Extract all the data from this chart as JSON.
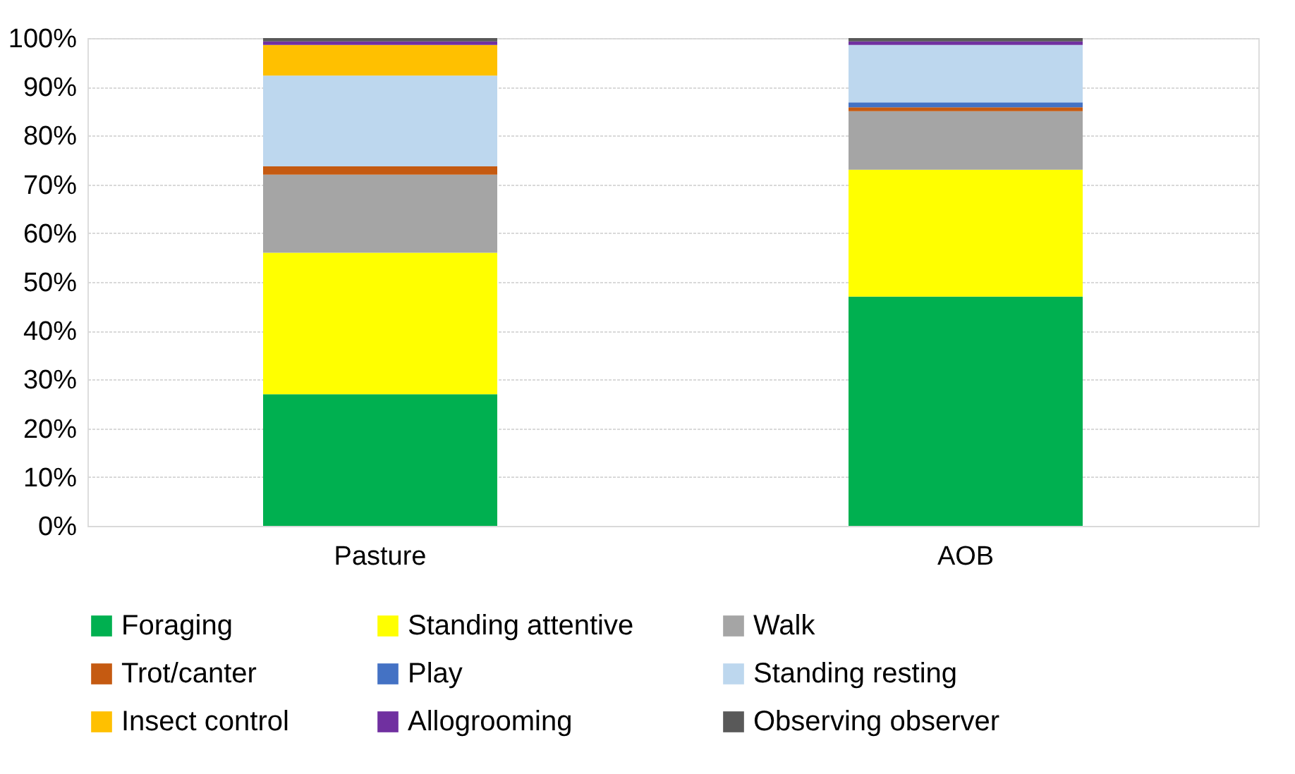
{
  "chart_data": {
    "type": "bar",
    "stacked": true,
    "categories": [
      "Pasture",
      "AOB"
    ],
    "series": [
      {
        "name": "Foraging",
        "color": "#00b050",
        "values": [
          27,
          47
        ]
      },
      {
        "name": "Standing attentive",
        "color": "#ffff00",
        "values": [
          29,
          26
        ]
      },
      {
        "name": "Walk",
        "color": "#a5a5a5",
        "values": [
          16,
          12
        ]
      },
      {
        "name": "Trot/canter",
        "color": "#c55a11",
        "values": [
          1.7,
          0.8
        ]
      },
      {
        "name": "Play",
        "color": "#4472c4",
        "values": [
          0,
          1
        ]
      },
      {
        "name": "Standing resting",
        "color": "#bdd7ee",
        "values": [
          18.6,
          11.8
        ]
      },
      {
        "name": "Insect control",
        "color": "#ffc000",
        "values": [
          6.3,
          0
        ]
      },
      {
        "name": "Allogrooming",
        "color": "#7030a0",
        "values": [
          0.7,
          0.7
        ]
      },
      {
        "name": "Observing observer",
        "color": "#595959",
        "values": [
          0.7,
          0.7
        ]
      }
    ],
    "ylim": [
      0,
      100
    ],
    "yticks": [
      {
        "value": 0,
        "label": "0%"
      },
      {
        "value": 10,
        "label": "10%"
      },
      {
        "value": 20,
        "label": "20%"
      },
      {
        "value": 30,
        "label": "30%"
      },
      {
        "value": 40,
        "label": "40%"
      },
      {
        "value": 50,
        "label": "50%"
      },
      {
        "value": 60,
        "label": "60%"
      },
      {
        "value": 70,
        "label": "70%"
      },
      {
        "value": 80,
        "label": "80%"
      },
      {
        "value": 90,
        "label": "90%"
      },
      {
        "value": 100,
        "label": "100%"
      }
    ],
    "grid": "y",
    "legend": "bottom"
  }
}
